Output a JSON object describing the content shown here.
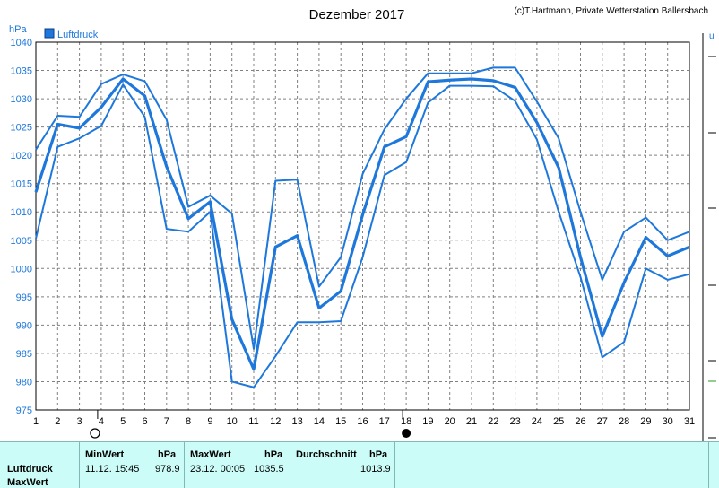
{
  "chart_data": {
    "type": "line",
    "title": "Dezember 2017",
    "credit": "(c)T.Hartmann, Private Wetterstation Ballersbach",
    "ylabel": "hPa",
    "ylim": [
      975,
      1040
    ],
    "yticks": [
      975,
      980,
      985,
      990,
      995,
      1000,
      1005,
      1010,
      1015,
      1020,
      1025,
      1030,
      1035,
      1040
    ],
    "x": [
      1,
      2,
      3,
      4,
      5,
      6,
      7,
      8,
      9,
      10,
      11,
      12,
      13,
      14,
      15,
      16,
      17,
      18,
      19,
      20,
      21,
      22,
      23,
      24,
      25,
      26,
      27,
      28,
      29,
      30,
      31
    ],
    "legend": "Luftdruck",
    "colors": {
      "line": "#1e78dc",
      "grid": "#808080",
      "axis_text": "#1e78dc"
    },
    "series": [
      {
        "values": [
          1021.0,
          1027.0,
          1026.8,
          1032.6,
          1034.3,
          1033.1,
          1026.3,
          1010.9,
          1012.9,
          1009.7,
          985.8,
          1015.5,
          1015.7,
          996.8,
          1002.0,
          1016.7,
          1024.6,
          1030.0,
          1034.5,
          1034.5,
          1034.5,
          1035.5,
          1035.5,
          1029.5,
          1023.0,
          1010.0,
          998.0,
          1006.5,
          1009.0,
          1005.0,
          1006.5
        ]
      },
      {
        "values": [
          1013.5,
          1025.5,
          1024.8,
          1028.5,
          1033.5,
          1030.5,
          1018.0,
          1008.8,
          1011.8,
          991.0,
          982.2,
          1003.8,
          1005.8,
          993.0,
          996.0,
          1009.5,
          1021.5,
          1023.3,
          1033.0,
          1033.3,
          1033.5,
          1033.2,
          1032.0,
          1025.8,
          1017.8,
          1002.0,
          988.0,
          997.5,
          1005.5,
          1002.2,
          1003.8
        ]
      },
      {
        "values": [
          1005.3,
          1021.5,
          1023.0,
          1025.2,
          1032.5,
          1026.8,
          1007.0,
          1006.5,
          1010.0,
          980.0,
          979.0,
          984.5,
          990.5,
          990.5,
          990.7,
          1002.0,
          1016.5,
          1018.8,
          1029.3,
          1032.3,
          1032.3,
          1032.2,
          1029.6,
          1022.8,
          1010.0,
          998.5,
          984.3,
          987.0,
          1000.0,
          998.0,
          999.0
        ]
      }
    ],
    "markers": [
      {
        "day": 4,
        "symbol": "open-circle"
      },
      {
        "day": 18,
        "symbol": "filled-circle"
      }
    ]
  },
  "table": {
    "headers": {
      "min": "MinWert",
      "min_unit": "hPa",
      "max": "MaxWert",
      "max_unit": "hPa",
      "avg": "Durchschnitt",
      "avg_unit": "hPa"
    },
    "rows": [
      {
        "label": "Luftdruck",
        "min_time": "11.12.  15:45",
        "min_value": "978.9",
        "max_time": "23.12.  00:05",
        "max_value": "1035.5",
        "avg_value": "1013.9"
      },
      {
        "label": "MaxWert"
      }
    ]
  }
}
